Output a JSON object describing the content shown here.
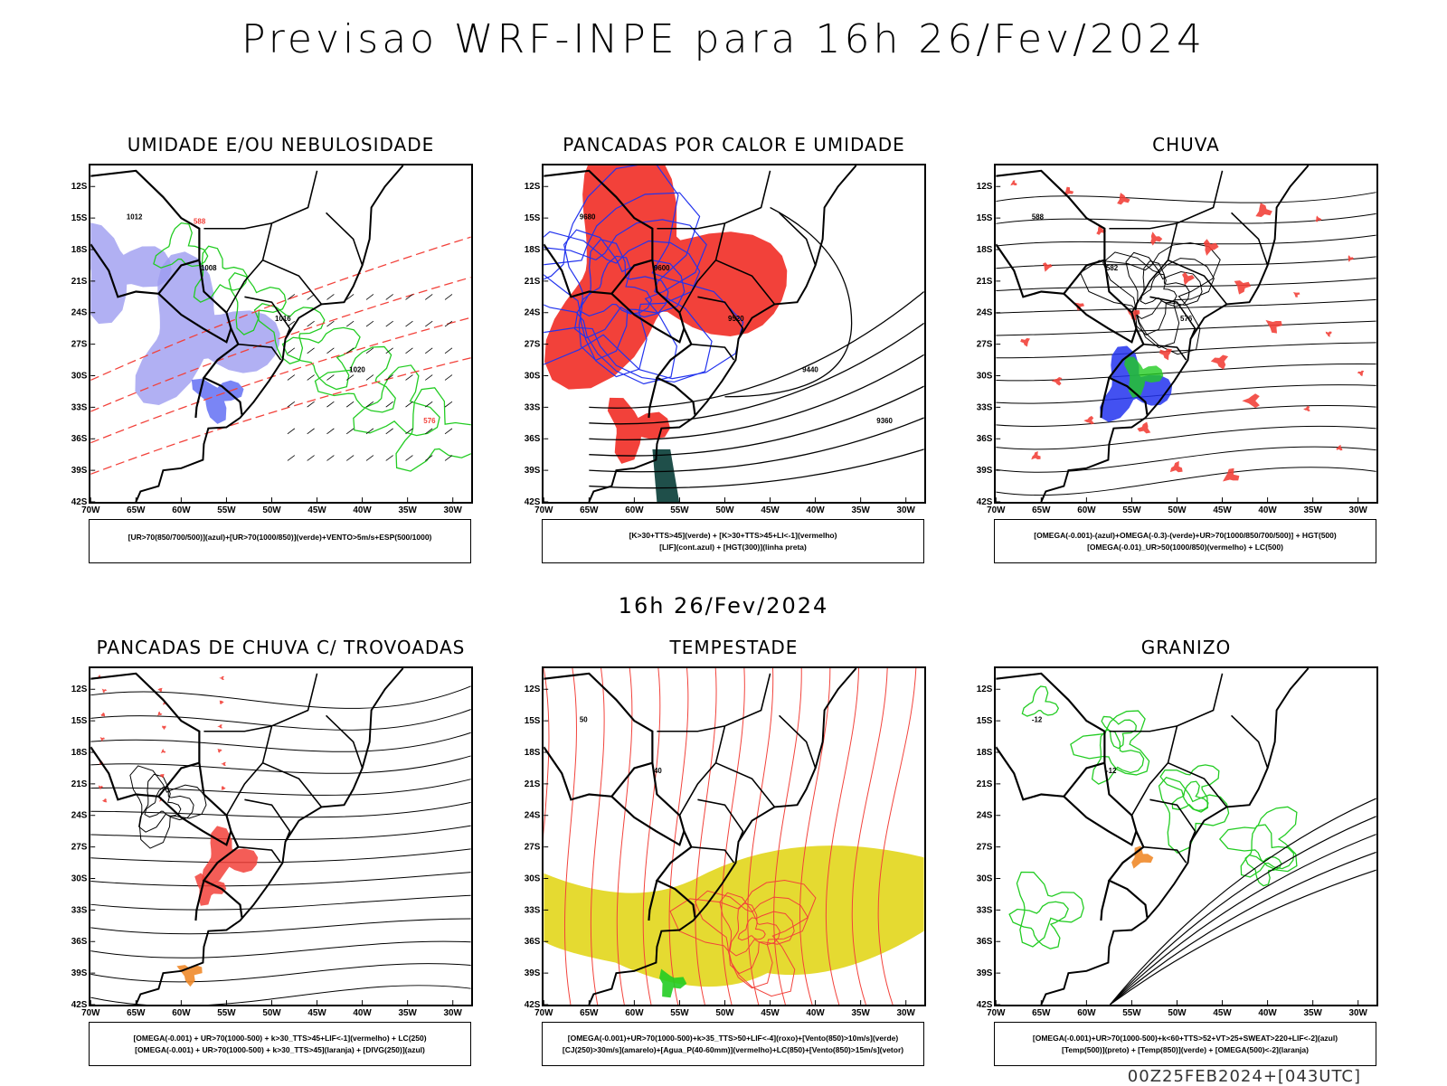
{
  "title": "Previsao WRF-INPE  para 16h 26/Fev/2024",
  "mid_date": "16h 26/Fev/2024",
  "footer": "00Z25FEB2024+[043UTC]",
  "axes": {
    "lat_ticks": [
      "12S",
      "15S",
      "18S",
      "21S",
      "24S",
      "27S",
      "30S",
      "33S",
      "36S",
      "39S",
      "42S"
    ],
    "lon_ticks": [
      "70W",
      "65W",
      "60W",
      "55W",
      "50W",
      "45W",
      "40W",
      "35W",
      "30W"
    ],
    "lat_range": [
      -10,
      -42
    ],
    "lon_range": [
      -70,
      -28
    ]
  },
  "colors": {
    "red": "#f2413a",
    "green": "#22cc22",
    "blue": "#2233ee",
    "lavender": "#9d9cf0",
    "yellow": "#e4d826",
    "orange": "#f08a2a",
    "darkteal": "#1f4f4a"
  },
  "panels": [
    {
      "id": "umidade",
      "title": "UMIDADE E/OU NEBULOSIDADE",
      "legend": [
        "[UR>70(850/700/500)](azul)+[UR>70(1000/850)](verde)+VENTO>5m/s+ESP(500/1000)"
      ],
      "labels": [
        "1012",
        "1008",
        "1016",
        "1020",
        "576",
        "588"
      ]
    },
    {
      "id": "pancadas-calor",
      "title": "PANCADAS POR CALOR E UMIDADE",
      "legend": [
        "[K>30+TTS>45](verde)  +  [K>30+TTS>45+LI<-1](vermelho)",
        "[LIF](cont.azul)  +  [HGT(300)](linha preta)"
      ],
      "labels": [
        "9680",
        "9600",
        "9520",
        "9440",
        "9360"
      ]
    },
    {
      "id": "chuva",
      "title": "CHUVA",
      "legend": [
        "[OMEGA(-0.001)-(azul)+OMEGA(-0.3)-(verde)+UR>70(1000/850/700/500)]  +  HGT(500)",
        "[OMEGA(-0.01)_UR>50(1000/850)(vermelho)  +  LC(500)"
      ],
      "labels": [
        "588",
        "582",
        "576"
      ]
    },
    {
      "id": "pancadas-trovoadas",
      "title": "PANCADAS DE CHUVA C/ TROVOADAS",
      "legend": [
        "[OMEGA(-0.001)  +  UR>70(1000-500)  +  k>30_TTS>45+LIF<-1](vermelho)  +  LC(250)",
        "[OMEGA(-0.001)  +  UR>70(1000-500)  +  k>30_TTS>45](laranja)  +  [DIVG(250)](azul)"
      ],
      "labels": []
    },
    {
      "id": "tempestade",
      "title": "TEMPESTADE",
      "legend": [
        "[OMEGA(-0.001)+UR>70(1000-500)+k>35_TTS>50+LIF<-4](roxo)+[Vento(850)>10m/s](verde)",
        "[CJ(250)>30m/s](amarelo)+[Agua_P(40-60mm)](vermelho)+LC(850)+[Vento(850)>15m/s](vetor)"
      ],
      "labels": [
        "50",
        "40"
      ]
    },
    {
      "id": "granizo",
      "title": "GRANIZO",
      "legend": [
        "[OMEGA(-0.001)+UR>70(1000-500)+k<60+TTS>52+VT>25+SWEAT>220+LIF<-2](azul)",
        "[Temp(500)](preto)  +  [Temp(850)](verde)  +  [OMEGA(500)<-2](laranja)"
      ],
      "labels": [
        "-12",
        "-12"
      ]
    }
  ]
}
